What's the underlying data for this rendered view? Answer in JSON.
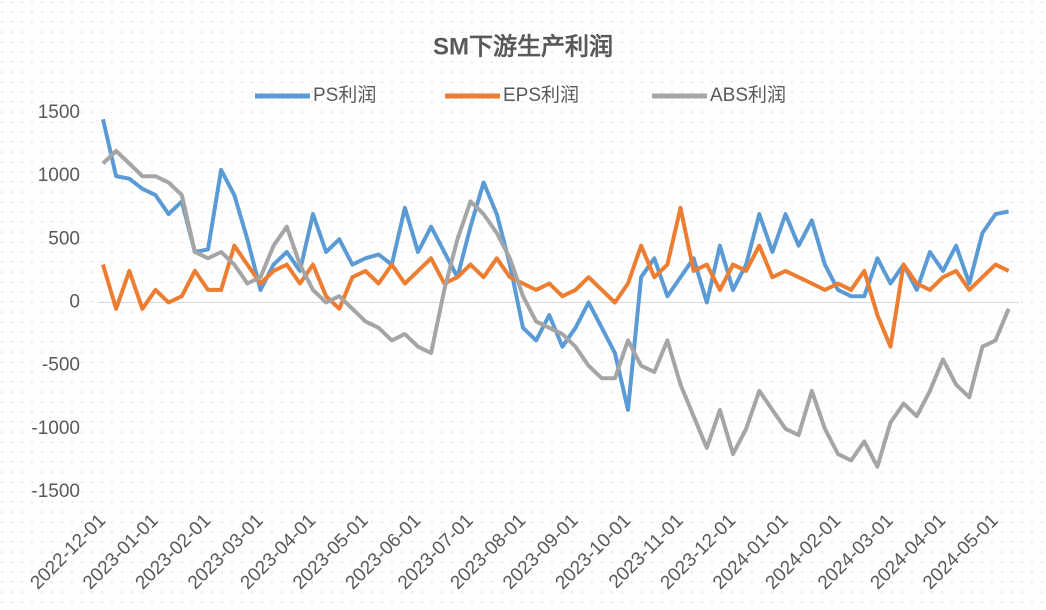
{
  "chart_data": {
    "type": "line",
    "title": "SM下游生产利润",
    "categories": [
      "2022-12-01",
      null,
      null,
      null,
      "2023-01-01",
      null,
      null,
      null,
      "2023-02-01",
      null,
      null,
      null,
      "2023-03-01",
      null,
      null,
      null,
      "2023-04-01",
      null,
      null,
      null,
      "2023-05-01",
      null,
      null,
      null,
      "2023-06-01",
      null,
      null,
      null,
      "2023-07-01",
      null,
      null,
      null,
      "2023-08-01",
      null,
      null,
      null,
      "2023-09-01",
      null,
      null,
      null,
      "2023-10-01",
      null,
      null,
      null,
      "2023-11-01",
      null,
      null,
      null,
      "2023-12-01",
      null,
      null,
      null,
      "2024-01-01",
      null,
      null,
      null,
      "2024-02-01",
      null,
      null,
      null,
      "2024-03-01",
      null,
      null,
      null,
      "2024-04-01",
      null,
      null,
      null,
      "2024-05-01",
      null
    ],
    "series": [
      {
        "name": "PS利润",
        "color": "#5b9bd5",
        "values": [
          1450,
          1000,
          980,
          900,
          850,
          700,
          800,
          400,
          420,
          1050,
          850,
          500,
          100,
          300,
          400,
          250,
          700,
          400,
          500,
          300,
          350,
          380,
          300,
          750,
          400,
          600,
          400,
          200,
          600,
          950,
          700,
          300,
          -200,
          -300,
          -100,
          -350,
          -200,
          0,
          -200,
          -400,
          -850,
          200,
          350,
          50,
          200,
          350,
          0,
          450,
          100,
          300,
          700,
          400,
          700,
          450,
          650,
          300,
          100,
          50,
          50,
          350,
          150,
          300,
          100,
          400,
          250,
          450,
          150,
          550,
          700,
          720
        ]
      },
      {
        "name": "EPS利润",
        "color": "#ed7d31",
        "values": [
          300,
          -50,
          250,
          -50,
          100,
          0,
          50,
          250,
          100,
          100,
          450,
          300,
          150,
          250,
          300,
          150,
          300,
          50,
          -50,
          200,
          250,
          150,
          300,
          150,
          250,
          350,
          150,
          200,
          300,
          200,
          350,
          200,
          150,
          100,
          150,
          50,
          100,
          200,
          100,
          0,
          150,
          450,
          200,
          300,
          750,
          250,
          300,
          100,
          300,
          250,
          450,
          200,
          250,
          200,
          150,
          100,
          150,
          100,
          250,
          -100,
          -350,
          300,
          150,
          100,
          200,
          250,
          100,
          200,
          300,
          250
        ]
      },
      {
        "name": "ABS利润",
        "color": "#a5a5a5",
        "values": [
          1100,
          1200,
          1100,
          1000,
          1000,
          950,
          850,
          400,
          350,
          400,
          300,
          150,
          200,
          450,
          600,
          300,
          100,
          0,
          50,
          -50,
          -150,
          -200,
          -300,
          -250,
          -350,
          -400,
          100,
          500,
          800,
          700,
          550,
          350,
          50,
          -150,
          -200,
          -250,
          -350,
          -500,
          -600,
          -600,
          -300,
          -500,
          -550,
          -300,
          -650,
          -900,
          -1150,
          -850,
          -1200,
          -1000,
          -700,
          -850,
          -1000,
          -1050,
          -700,
          -1000,
          -1200,
          -1250,
          -1100,
          -1300,
          -950,
          -800,
          -900,
          -700,
          -450,
          -650,
          -750,
          -350,
          -300,
          -50
        ]
      }
    ],
    "ylim": [
      -1500,
      1500
    ],
    "yticks": [
      -1500,
      -1000,
      -500,
      0,
      500,
      1000,
      1500
    ],
    "grid": false
  }
}
